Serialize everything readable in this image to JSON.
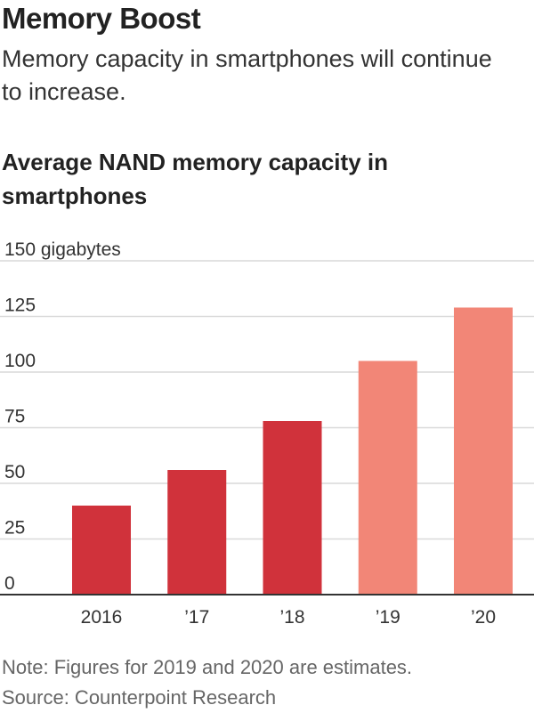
{
  "header": {
    "title": "Memory Boost",
    "subtitle": "Memory capacity in smartphones will continue to increase."
  },
  "chart_data": {
    "type": "bar",
    "title": "Average NAND memory capacity in smartphones",
    "ylabel": "gigabytes",
    "ylim": [
      0,
      150
    ],
    "yticks": [
      0,
      25,
      50,
      75,
      100,
      125,
      150
    ],
    "ytick_labels": [
      "0",
      "25",
      "50",
      "75",
      "100",
      "125",
      "150 gigabytes"
    ],
    "categories": [
      "2016",
      "’17",
      "’18",
      "’19",
      "’20"
    ],
    "values": [
      40,
      56,
      78,
      105,
      129
    ],
    "estimates": [
      false,
      false,
      false,
      true,
      true
    ],
    "grid": true,
    "colors": {
      "actual": "#d0323b",
      "estimate": "#f28677",
      "grid": "#d9d9d9",
      "axis": "#333333",
      "label": "#333333"
    }
  },
  "footer": {
    "note": "Note: Figures for 2019 and 2020 are estimates.",
    "source": "Source: Counterpoint Research"
  }
}
